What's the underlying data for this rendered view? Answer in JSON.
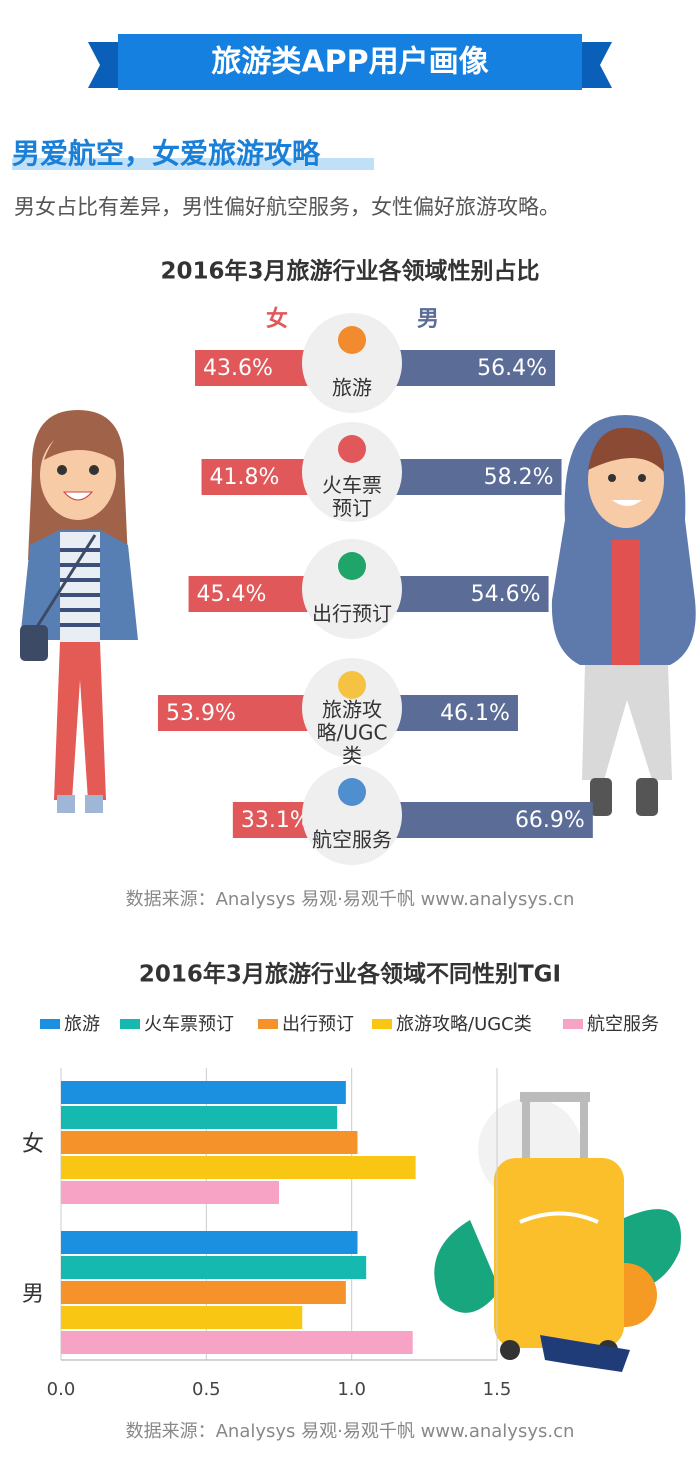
{
  "header": {
    "title": "旅游类APP用户画像"
  },
  "section": {
    "heading": "男爱航空，女爱旅游攻略",
    "text": "男女占比有差异，男性偏好航空服务，女性偏好旅游攻略。"
  },
  "sources": [
    "数据来源：Analysys 易观·易观千帆 www.analysys.cn",
    "数据来源：Analysys 易观·易观千帆 www.analysys.cn"
  ],
  "chart_data": [
    {
      "type": "diverging_bar",
      "title": "2016年3月旅游行业各领域性别占比",
      "categories": [
        "旅游",
        "火车票预订",
        "出行预订",
        "旅游攻略/UGC类",
        "航空服务"
      ],
      "series": [
        {
          "name": "女",
          "color": "#e1585b",
          "values": [
            43.6,
            41.8,
            45.4,
            53.9,
            33.1
          ],
          "value_labels": [
            "43.6%",
            "41.8%",
            "45.4%",
            "53.9%",
            "33.1%"
          ]
        },
        {
          "name": "男",
          "color": "#5b6c97",
          "values": [
            56.4,
            58.2,
            54.6,
            46.1,
            66.9
          ],
          "value_labels": [
            "56.4%",
            "58.2%",
            "54.6%",
            "46.1%",
            "66.9%"
          ]
        }
      ]
    },
    {
      "type": "bar",
      "title": "2016年3月旅游行业各领域不同性别TGI",
      "orientation": "horizontal",
      "categories": [
        "女",
        "男"
      ],
      "series": [
        {
          "name": "旅游",
          "color": "#1b8fe0",
          "values": [
            0.98,
            1.02
          ]
        },
        {
          "name": "火车票预订",
          "color": "#16b9b0",
          "values": [
            0.95,
            1.05
          ]
        },
        {
          "name": "出行预订",
          "color": "#f5922a",
          "values": [
            1.02,
            0.98
          ]
        },
        {
          "name": "旅游攻略/UGC类",
          "color": "#f9c614",
          "values": [
            1.22,
            0.83
          ]
        },
        {
          "name": "航空服务",
          "color": "#f7a3c5",
          "values": [
            0.75,
            1.21
          ]
        }
      ],
      "xlim": [
        0,
        1.5
      ],
      "xticks": [
        {
          "value": 0,
          "label": "0.0"
        },
        0.5,
        {
          "value": 1,
          "label": "1.0"
        },
        1.5
      ],
      "grid": true
    }
  ]
}
